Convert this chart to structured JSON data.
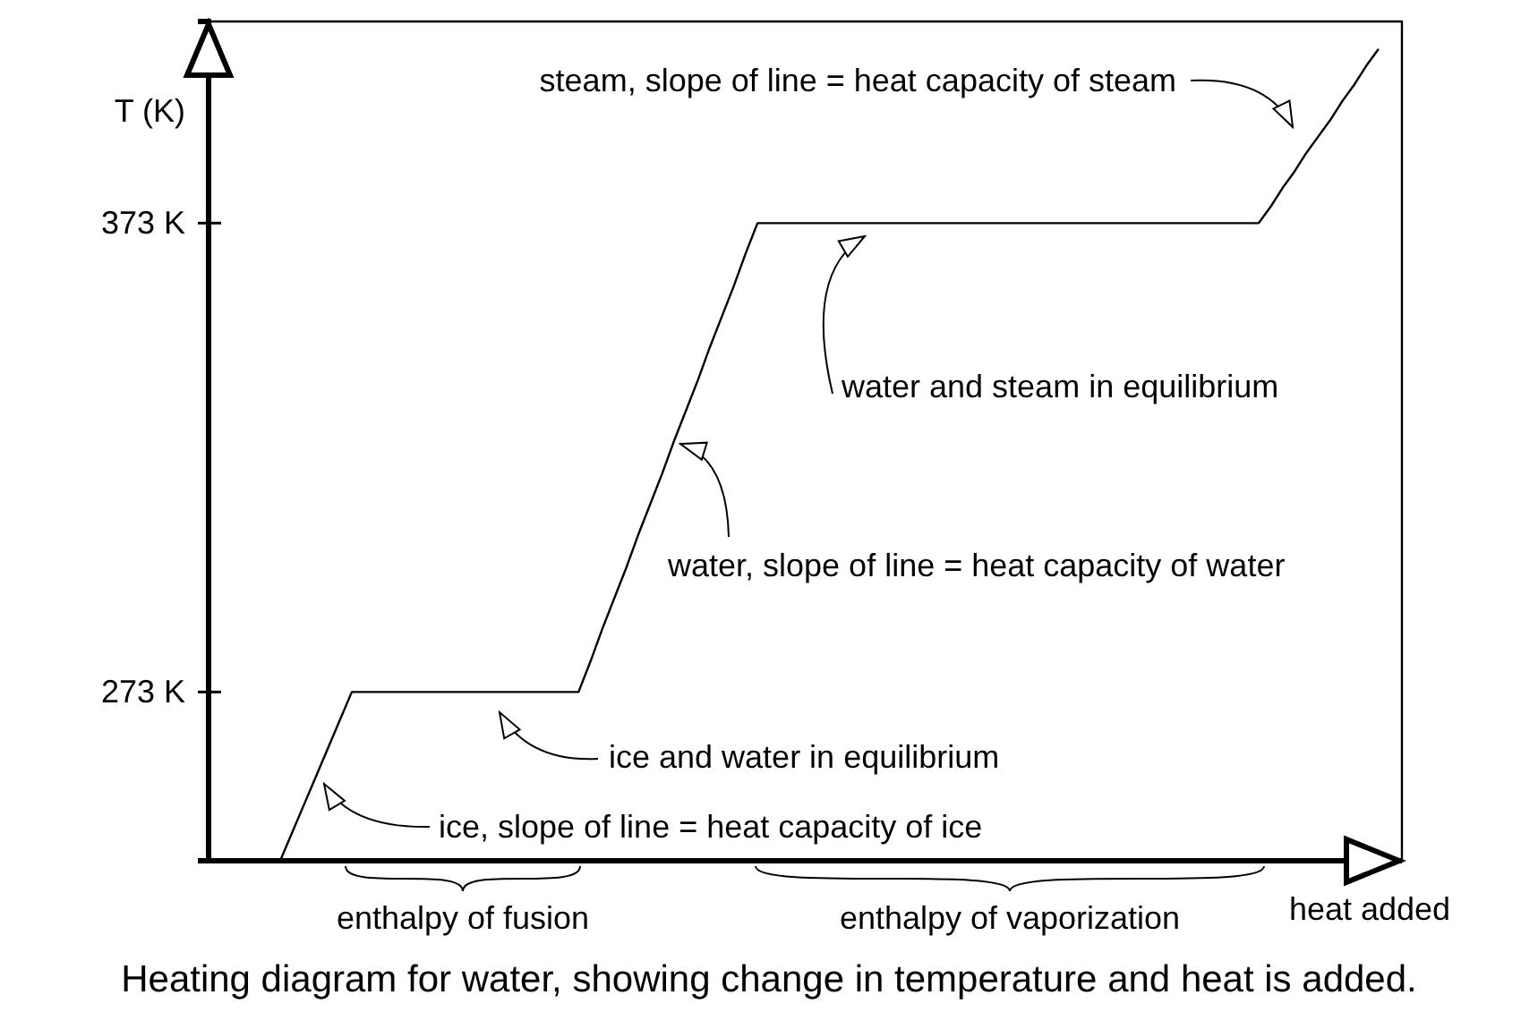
{
  "chart_data": {
    "type": "line",
    "categories": [
      null,
      null,
      null,
      null,
      null,
      null,
      null,
      null,
      null,
      null,
      null,
      null,
      null,
      null,
      null,
      null,
      null,
      null,
      null,
      null,
      null,
      null,
      null,
      null,
      null,
      null,
      null,
      null,
      null,
      null,
      null,
      null,
      null,
      null,
      null,
      null,
      null,
      null,
      null,
      null,
      null,
      null,
      null,
      null,
      null,
      null,
      null,
      null,
      null,
      null,
      null,
      null,
      null,
      null,
      null,
      null,
      null,
      null,
      null,
      null,
      null,
      null,
      null,
      null,
      null,
      null,
      null,
      null,
      null,
      null,
      null,
      null,
      null,
      null,
      null,
      null,
      null,
      null,
      null,
      null,
      null,
      null,
      null,
      null,
      null,
      null,
      null,
      null,
      null,
      null,
      null,
      null,
      null,
      null,
      null,
      null,
      null,
      null,
      null,
      null,
      null
    ],
    "ylim": [
      237,
      416
    ],
    "yticks": [
      {
        "value": 273,
        "label": "273 K"
      },
      {
        "value": 373,
        "label": "373 K"
      }
    ],
    "tick_labels": "y",
    "ylabel": "T (K)",
    "xlabel": "heat added",
    "series": [
      {
        "color": "#000000",
        "values": [
          null,
          null,
          null,
          null,
          null,
          null,
          237,
          243,
          249,
          255,
          261,
          267,
          273,
          273,
          273,
          273,
          273,
          273,
          273,
          273,
          273,
          273,
          273,
          273,
          273,
          273,
          273,
          273,
          273,
          273,
          273,
          273,
          279.5,
          286.5,
          293,
          299.5,
          306.5,
          313,
          319.5,
          326.5,
          333,
          339.5,
          346.5,
          353,
          359.5,
          366.5,
          373,
          373,
          373,
          373,
          373,
          373,
          373,
          373,
          373,
          373,
          373,
          373,
          373,
          373,
          373,
          373,
          373,
          373,
          373,
          373,
          373,
          373,
          373,
          373,
          373,
          373,
          373,
          373,
          373,
          373,
          373,
          373,
          373,
          373,
          373,
          373,
          373,
          373,
          373,
          373,
          373,
          373,
          373,
          376.5,
          380.5,
          384,
          388,
          391.5,
          395,
          399,
          402.5,
          406.5,
          410,
          null,
          null
        ]
      }
    ],
    "annotations": [
      "steam, slope of line = heat capacity of steam",
      "water and steam in equilibrium",
      "water, slope of line = heat capacity of water",
      "ice and water in equilibrium",
      "ice, slope of line = heat capacity of ice",
      "enthalpy of fusion",
      "enthalpy of vaporization",
      "Heating diagram for water, showing change in temperature and heat is added."
    ]
  }
}
